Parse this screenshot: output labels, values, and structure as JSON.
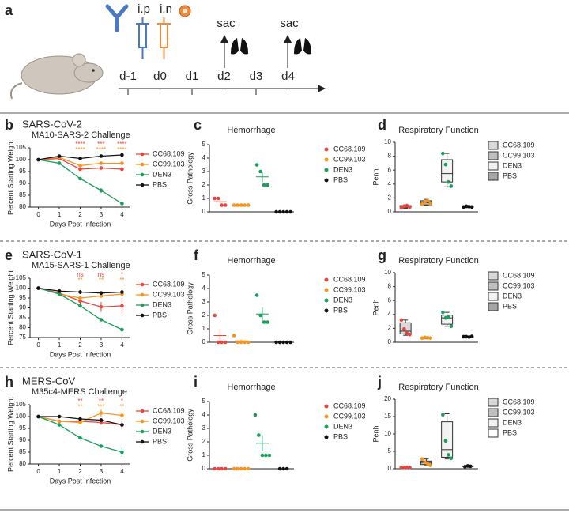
{
  "timeline": {
    "panel": "a",
    "routes": [
      "i.p",
      "i.n"
    ],
    "days": [
      "d-1",
      "d0",
      "d1",
      "d2",
      "d3",
      "d4"
    ],
    "events": [
      "sac",
      "sac"
    ]
  },
  "chart_data": [
    {
      "type": "line",
      "panel": "b",
      "title": "SARS-CoV-2",
      "subtitle": "MA10-SARS-2 Challenge",
      "xlabel": "Days Post Infection",
      "ylabel": "Percent Starting Weight",
      "x": [
        0,
        1,
        2,
        3,
        4
      ],
      "xlim": [
        -0.4,
        4.4
      ],
      "xticks": [
        0,
        1,
        2,
        3,
        4
      ],
      "ylim": [
        80,
        105
      ],
      "yticks": [
        80,
        85,
        90,
        95,
        100,
        105
      ],
      "series": [
        {
          "name": "CC68.109",
          "color": "#e8453c",
          "values": [
            100,
            100.5,
            96,
            96.5,
            96
          ],
          "errors": [
            0.2,
            0.5,
            0.6,
            0.5,
            0.5
          ]
        },
        {
          "name": "CC99.103",
          "color": "#f7941d",
          "values": [
            100,
            101,
            97.5,
            98.5,
            98.5
          ],
          "errors": [
            0.2,
            0.5,
            0.5,
            0.5,
            0.5
          ]
        },
        {
          "name": "DEN3",
          "color": "#1a9e5b",
          "values": [
            100,
            98.5,
            92,
            87,
            81.5
          ],
          "errors": [
            0.2,
            0.5,
            0.6,
            1,
            0.6
          ]
        },
        {
          "name": "PBS",
          "color": "#111111",
          "values": [
            100,
            101.5,
            100.5,
            101.5,
            102
          ],
          "errors": [
            0.2,
            0.5,
            0.5,
            0.5,
            0.5
          ]
        }
      ],
      "annotations": [
        {
          "x": 2,
          "label": "****",
          "color": "#e8453c"
        },
        {
          "x": 3,
          "label": "***",
          "color": "#e8453c"
        },
        {
          "x": 4,
          "label": "****",
          "color": "#e8453c"
        },
        {
          "x": 2,
          "label": "****",
          "color": "#f7941d"
        },
        {
          "x": 3,
          "label": "****",
          "color": "#f7941d"
        },
        {
          "x": 4,
          "label": "****",
          "color": "#f7941d"
        }
      ]
    },
    {
      "type": "dotplot",
      "panel": "c",
      "title": "Hemorrhage",
      "ylabel": "Gross  Pathology",
      "ylim": [
        0,
        5
      ],
      "yticks": [
        0,
        1,
        2,
        3,
        4,
        5
      ],
      "series": [
        {
          "name": "CC68.109",
          "color": "#e8453c",
          "values": [
            1,
            1,
            0.5,
            0.5
          ],
          "mean": 0.75,
          "error": 0.14
        },
        {
          "name": "CC99.103",
          "color": "#f7941d",
          "values": [
            0.5,
            0.5,
            0.5,
            0.5,
            0.5
          ],
          "mean": 0.5,
          "error": 0
        },
        {
          "name": "DEN3",
          "color": "#1a9e5b",
          "values": [
            3.5,
            3,
            2,
            2
          ],
          "mean": 2.6,
          "error": 0.4
        },
        {
          "name": "PBS",
          "color": "#111111",
          "values": [
            0,
            0,
            0,
            0,
            0
          ],
          "mean": 0,
          "error": 0
        }
      ]
    },
    {
      "type": "box",
      "panel": "d",
      "title": "Respiratory Function",
      "ylabel": "Penh",
      "ylim": [
        0,
        10
      ],
      "yticks": [
        0,
        2,
        4,
        6,
        8,
        10
      ],
      "series": [
        {
          "name": "CC68.109",
          "color": "#e8453c",
          "fill": "#d9d9d9",
          "min": 0.5,
          "q1": 0.6,
          "median": 0.75,
          "q3": 0.9,
          "max": 1,
          "points": [
            0.6,
            0.8,
            0.9,
            0.7
          ]
        },
        {
          "name": "CC99.103",
          "color": "#f7941d",
          "fill": "#bfbfbf",
          "min": 0.9,
          "q1": 1,
          "median": 1.3,
          "q3": 1.6,
          "max": 1.8,
          "points": [
            1.1,
            1.4,
            1.6,
            1.2
          ]
        },
        {
          "name": "DEN3",
          "color": "#1a9e5b",
          "fill": "#f2f2f2",
          "min": 3.6,
          "q1": 4.3,
          "median": 5.5,
          "q3": 7.5,
          "max": 8.4,
          "points": [
            8.4,
            6.8,
            4.3,
            3.7
          ]
        },
        {
          "name": "PBS",
          "color": "#111111",
          "fill": "#a6a6a6",
          "min": 0.6,
          "q1": 0.7,
          "median": 0.75,
          "q3": 0.8,
          "max": 0.9,
          "points": [
            0.7,
            0.8,
            0.75,
            0.7
          ]
        }
      ]
    },
    {
      "type": "line",
      "panel": "e",
      "title": "SARS-CoV-1",
      "subtitle": "MA15-SARS-1 Challenge",
      "xlabel": "Days Post Infection",
      "ylabel": "Percent Starting Weight",
      "x": [
        0,
        1,
        2,
        3,
        4
      ],
      "xlim": [
        -0.4,
        4.4
      ],
      "xticks": [
        0,
        1,
        2,
        3,
        4
      ],
      "ylim": [
        75,
        105
      ],
      "yticks": [
        75,
        80,
        85,
        90,
        95,
        100,
        105
      ],
      "series": [
        {
          "name": "CC68.109",
          "color": "#e8453c",
          "values": [
            100,
            97.5,
            93.5,
            90.5,
            91
          ],
          "errors": [
            0.2,
            1,
            2,
            2.5,
            4
          ]
        },
        {
          "name": "CC99.103",
          "color": "#f7941d",
          "values": [
            100,
            97,
            95,
            96,
            97
          ],
          "errors": [
            0.2,
            0.8,
            1,
            0.8,
            1
          ]
        },
        {
          "name": "DEN3",
          "color": "#1a9e5b",
          "values": [
            100,
            97,
            91,
            84,
            79
          ],
          "errors": [
            0.2,
            0.6,
            0.6,
            0.6,
            0.5
          ]
        },
        {
          "name": "PBS",
          "color": "#111111",
          "values": [
            100,
            98.5,
            98,
            97.5,
            98
          ],
          "errors": [
            0.2,
            1,
            1,
            1,
            1
          ]
        }
      ],
      "annotations": [
        {
          "x": 2,
          "label": "ns",
          "color": "#e8453c"
        },
        {
          "x": 3,
          "label": "ns",
          "color": "#e8453c"
        },
        {
          "x": 4,
          "label": "*",
          "color": "#e8453c"
        },
        {
          "x": 2,
          "label": "**",
          "color": "#f7941d"
        },
        {
          "x": 3,
          "label": "**",
          "color": "#f7941d"
        },
        {
          "x": 4,
          "label": "**",
          "color": "#f7941d"
        }
      ]
    },
    {
      "type": "dotplot",
      "panel": "f",
      "title": "Hemorrhage",
      "ylabel": "Gross  Pathology",
      "ylim": [
        0,
        5
      ],
      "yticks": [
        0,
        1,
        2,
        3,
        4,
        5
      ],
      "series": [
        {
          "name": "CC68.109",
          "color": "#e8453c",
          "values": [
            2,
            0,
            0,
            0
          ],
          "mean": 0.5,
          "error": 0.5
        },
        {
          "name": "CC99.103",
          "color": "#f7941d",
          "values": [
            0.5,
            0,
            0,
            0,
            0
          ],
          "mean": 0.1,
          "error": 0.1
        },
        {
          "name": "DEN3",
          "color": "#1a9e5b",
          "values": [
            3.5,
            2,
            1.5,
            1.5
          ],
          "mean": 2.1,
          "error": 0.5
        },
        {
          "name": "PBS",
          "color": "#111111",
          "values": [
            0,
            0,
            0,
            0,
            0
          ],
          "mean": 0,
          "error": 0
        }
      ]
    },
    {
      "type": "box",
      "panel": "g",
      "title": "Respiratory Function",
      "ylabel": "Penh",
      "ylim": [
        0,
        10
      ],
      "yticks": [
        0,
        2,
        4,
        6,
        8,
        10
      ],
      "series": [
        {
          "name": "CC68.109",
          "color": "#e8453c",
          "fill": "#d9d9d9",
          "min": 1,
          "q1": 1.2,
          "median": 1.6,
          "q3": 2.8,
          "max": 3.2,
          "points": [
            3.2,
            1.9,
            1.3,
            1.1
          ]
        },
        {
          "name": "CC99.103",
          "color": "#f7941d",
          "fill": "#bfbfbf",
          "min": 0.5,
          "q1": 0.6,
          "median": 0.65,
          "q3": 0.7,
          "max": 0.8,
          "points": [
            0.6,
            0.7,
            0.65,
            0.6
          ]
        },
        {
          "name": "DEN3",
          "color": "#1a9e5b",
          "fill": "#f2f2f2",
          "min": 2.3,
          "q1": 2.6,
          "median": 3.5,
          "q3": 3.9,
          "max": 4.3,
          "points": [
            4.3,
            3.5,
            3.6,
            2.3
          ]
        },
        {
          "name": "PBS",
          "color": "#111111",
          "fill": "#a6a6a6",
          "min": 0.7,
          "q1": 0.75,
          "median": 0.8,
          "q3": 0.85,
          "max": 0.9,
          "points": [
            0.8,
            0.8,
            0.75,
            0.85
          ]
        }
      ]
    },
    {
      "type": "line",
      "panel": "h",
      "title": "MERS-CoV",
      "subtitle": "M35c4-MERS Challenge",
      "xlabel": "Days Post Infection",
      "ylabel": "Percent Starting Weight",
      "x": [
        0,
        1,
        2,
        3,
        4
      ],
      "xlim": [
        -0.4,
        4.4
      ],
      "xticks": [
        0,
        1,
        2,
        3,
        4
      ],
      "ylim": [
        80,
        105
      ],
      "yticks": [
        80,
        85,
        90,
        95,
        100,
        105
      ],
      "series": [
        {
          "name": "CC68.109",
          "color": "#e8453c",
          "values": [
            100,
            98,
            98,
            97.5,
            96.5
          ],
          "errors": [
            0.2,
            0.5,
            0.8,
            1,
            1
          ]
        },
        {
          "name": "CC99.103",
          "color": "#f7941d",
          "values": [
            100,
            98,
            97.5,
            101.5,
            100.5
          ],
          "errors": [
            0.2,
            0.5,
            0.8,
            1.5,
            1.5
          ]
        },
        {
          "name": "DEN3",
          "color": "#1a9e5b",
          "values": [
            100,
            96.5,
            91,
            87.5,
            85
          ],
          "errors": [
            0.2,
            0.5,
            0.6,
            0.7,
            2
          ]
        },
        {
          "name": "PBS",
          "color": "#111111",
          "values": [
            100,
            100,
            99,
            98.5,
            96.5
          ],
          "errors": [
            0.2,
            0.5,
            0.5,
            0.8,
            2
          ]
        }
      ],
      "annotations": [
        {
          "x": 2,
          "label": "**",
          "color": "#e8453c"
        },
        {
          "x": 3,
          "label": "**",
          "color": "#e8453c"
        },
        {
          "x": 4,
          "label": "*",
          "color": "#e8453c"
        },
        {
          "x": 2,
          "label": "**",
          "color": "#f7941d"
        },
        {
          "x": 3,
          "label": "***",
          "color": "#f7941d"
        },
        {
          "x": 4,
          "label": "**",
          "color": "#f7941d"
        }
      ]
    },
    {
      "type": "dotplot",
      "panel": "i",
      "title": "Hemorrhage",
      "ylabel": "Gross  Pathology",
      "ylim": [
        0,
        5
      ],
      "yticks": [
        0,
        1,
        2,
        3,
        4,
        5
      ],
      "series": [
        {
          "name": "CC68.109",
          "color": "#e8453c",
          "values": [
            0,
            0,
            0,
            0
          ],
          "mean": 0,
          "error": 0
        },
        {
          "name": "CC99.103",
          "color": "#f7941d",
          "values": [
            0,
            0,
            0,
            0,
            0
          ],
          "mean": 0,
          "error": 0
        },
        {
          "name": "DEN3",
          "color": "#1a9e5b",
          "values": [
            4,
            2.5,
            1,
            1,
            1
          ],
          "mean": 1.9,
          "error": 0.6
        },
        {
          "name": "PBS",
          "color": "#111111",
          "values": [
            0,
            0,
            0
          ],
          "mean": 0,
          "error": 0
        }
      ]
    },
    {
      "type": "box",
      "panel": "j",
      "title": "Respiratory Function",
      "ylabel": "Penh",
      "ylim": [
        0,
        20
      ],
      "yticks": [
        0,
        5,
        10,
        15,
        20
      ],
      "series": [
        {
          "name": "CC68.109",
          "color": "#e8453c",
          "fill": "#d9d9d9",
          "min": 0.3,
          "q1": 0.35,
          "median": 0.4,
          "q3": 0.45,
          "max": 0.5,
          "points": [
            0.4,
            0.4,
            0.4,
            0.4
          ]
        },
        {
          "name": "CC99.103",
          "color": "#f7941d",
          "fill": "#bfbfbf",
          "min": 0.9,
          "q1": 1.2,
          "median": 1.8,
          "q3": 2.2,
          "max": 2.8,
          "points": [
            2.8,
            1.9,
            1.4,
            1
          ]
        },
        {
          "name": "DEN3",
          "color": "#1a9e5b",
          "fill": "#f2f2f2",
          "min": 2.8,
          "q1": 3.3,
          "median": 5.5,
          "q3": 13.5,
          "max": 15.8,
          "points": [
            15.5,
            8,
            4,
            3
          ]
        },
        {
          "name": "PBS",
          "color": "#111111",
          "fill": "#ffffff",
          "min": 0.6,
          "q1": 0.65,
          "median": 0.7,
          "q3": 0.75,
          "max": 0.8,
          "points": [
            0.6,
            0.8,
            0.7
          ]
        }
      ]
    }
  ]
}
